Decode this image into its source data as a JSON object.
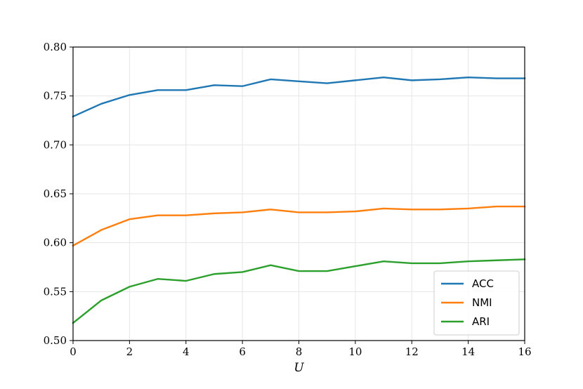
{
  "chart_data": {
    "type": "line",
    "title": "",
    "xlabel": "U",
    "ylabel": "",
    "xlim": [
      0,
      16
    ],
    "ylim": [
      0.5,
      0.8
    ],
    "grid": true,
    "legend_position": "bottom-right",
    "x_ticks": [
      "0",
      "2",
      "4",
      "6",
      "8",
      "10",
      "12",
      "14",
      "16"
    ],
    "y_ticks": [
      "0.50",
      "0.55",
      "0.60",
      "0.65",
      "0.70",
      "0.75",
      "0.80"
    ],
    "x": [
      0,
      1,
      2,
      3,
      4,
      5,
      6,
      7,
      8,
      9,
      10,
      11,
      12,
      13,
      14,
      15,
      16
    ],
    "series": [
      {
        "name": "ACC",
        "color": "#1f77b4",
        "values": [
          0.729,
          0.742,
          0.751,
          0.756,
          0.756,
          0.761,
          0.76,
          0.767,
          0.765,
          0.763,
          0.766,
          0.769,
          0.766,
          0.767,
          0.769,
          0.768,
          0.768
        ]
      },
      {
        "name": "NMI",
        "color": "#ff7f0e",
        "values": [
          0.597,
          0.613,
          0.624,
          0.628,
          0.628,
          0.63,
          0.631,
          0.634,
          0.631,
          0.631,
          0.632,
          0.635,
          0.634,
          0.634,
          0.635,
          0.637,
          0.637
        ]
      },
      {
        "name": "ARI",
        "color": "#2ca02c",
        "values": [
          0.518,
          0.541,
          0.555,
          0.563,
          0.561,
          0.568,
          0.57,
          0.577,
          0.571,
          0.571,
          0.576,
          0.581,
          0.579,
          0.579,
          0.581,
          0.582,
          0.583
        ]
      }
    ]
  }
}
